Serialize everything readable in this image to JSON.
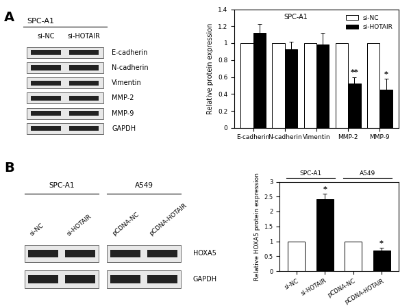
{
  "panel_labels": [
    "A",
    "B"
  ],
  "blots": [
    {
      "groups": [
        {
          "header": "SPC-A1",
          "lanes": [
            "si-NC",
            "si-HOTAIR"
          ]
        }
      ],
      "rows": [
        "E-cadherin",
        "N-cadherin",
        "Vimentin",
        "MMP-2",
        "MMP-9",
        "GAPDH"
      ]
    },
    {
      "groups": [
        {
          "header": "SPC-A1",
          "lanes": [
            "si-NC",
            "si-HOTAIR"
          ]
        },
        {
          "header": "A549",
          "lanes": [
            "pCDNA-NC",
            "pCDNA-HOTAIR"
          ]
        }
      ],
      "rows": [
        "HOXA5",
        "GAPDH"
      ]
    }
  ],
  "chart_data": [
    {
      "type": "bar",
      "title": "SPC-A1",
      "ylabel": "Relative protein expression",
      "categories": [
        "E-cadherin",
        "N-cadherin",
        "Vimentin",
        "MMP-2",
        "MMP-9"
      ],
      "series": [
        {
          "name": "si-NC",
          "color": "#ffffff",
          "values": [
            1,
            1,
            1,
            1,
            1
          ]
        },
        {
          "name": "si-HOTAIR",
          "color": "#000000",
          "values": [
            1.12,
            0.93,
            0.98,
            0.52,
            0.45
          ],
          "errors": [
            0.11,
            0.09,
            0.14,
            0.08,
            0.13
          ]
        }
      ],
      "ylim": [
        0,
        1.4
      ],
      "yticks": [
        0,
        0.2,
        0.4,
        0.6,
        0.8,
        1,
        1.2,
        1.4
      ],
      "legend": "upper right",
      "annotations": [
        {
          "category": "MMP-2",
          "series": "si-HOTAIR",
          "text": "**"
        },
        {
          "category": "MMP-9",
          "series": "si-HOTAIR",
          "text": "*"
        }
      ]
    },
    {
      "type": "bar",
      "ylabel": "Relative HOXA5 protein expression",
      "categories": [
        "si-NC",
        "si-HOTAIR",
        "pCDNA-NC",
        "pCDNA-HOTAIR"
      ],
      "values": [
        1,
        2.42,
        1,
        0.7
      ],
      "errors": [
        null,
        0.18,
        null,
        0.08
      ],
      "colors": [
        "#ffffff",
        "#000000",
        "#ffffff",
        "#000000"
      ],
      "groups": [
        {
          "label": "SPC-A1",
          "categories": [
            "si-NC",
            "si-HOTAIR"
          ]
        },
        {
          "label": "A549",
          "categories": [
            "pCDNA-NC",
            "pCDNA-HOTAIR"
          ]
        }
      ],
      "ylim": [
        0,
        3
      ],
      "yticks": [
        0,
        0.5,
        1,
        1.5,
        2,
        2.5,
        3
      ],
      "annotations": [
        {
          "category": "si-HOTAIR",
          "text": "*"
        },
        {
          "category": "pCDNA-HOTAIR",
          "text": "*"
        }
      ]
    }
  ]
}
